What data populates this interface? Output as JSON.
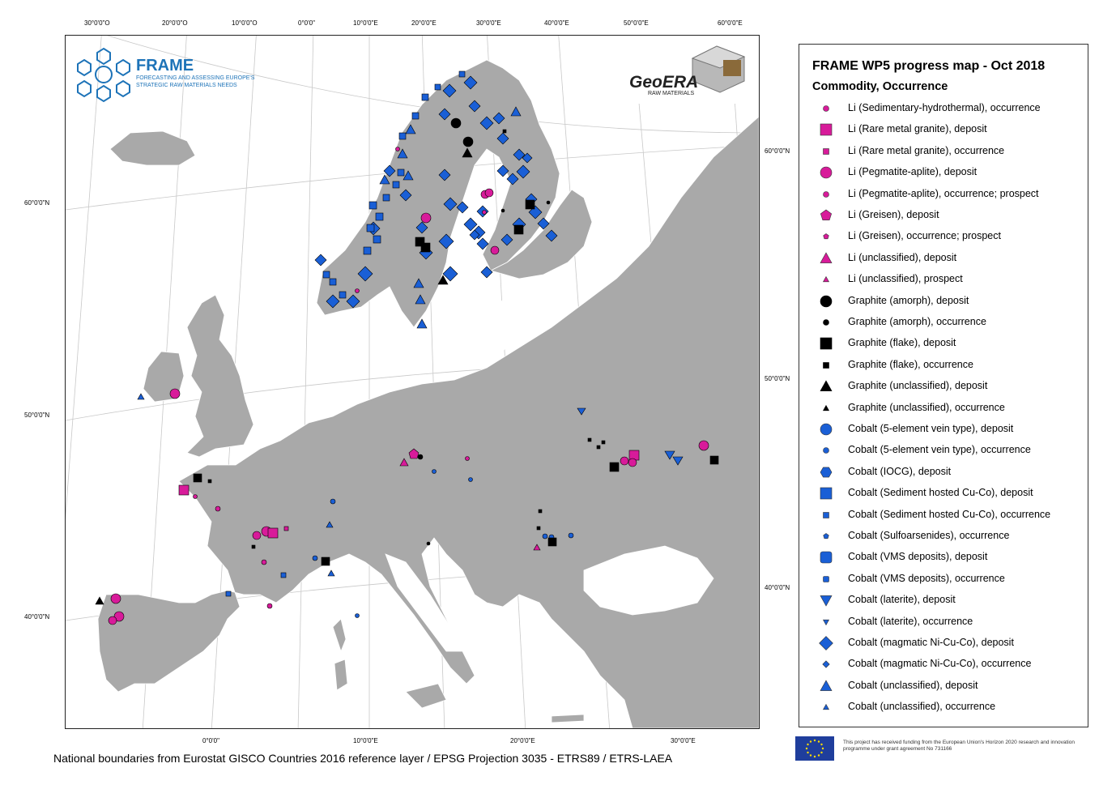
{
  "header": {
    "project_name": "FRAME",
    "project_tagline": "FORECASTING AND ASSESSING EUROPE'S STRATEGIC RAW MATERIALS NEEDS",
    "partner_name": "GeoERA",
    "partner_tagline": "RAW MATERIALS"
  },
  "legend": {
    "title": "FRAME WP5 progress map - Oct 2018",
    "subtitle": "Commodity, Occurrence",
    "items": [
      {
        "label": "Li (Sedimentary-hydrothermal), occurrence",
        "shape": "circle",
        "size": "small",
        "color": "#d81b9a"
      },
      {
        "label": "Li (Rare metal granite), deposit",
        "shape": "square",
        "size": "large",
        "color": "#d81b9a"
      },
      {
        "label": "Li (Rare metal granite), occurrence",
        "shape": "square",
        "size": "small",
        "color": "#d81b9a"
      },
      {
        "label": "Li (Pegmatite-aplite), deposit",
        "shape": "circle",
        "size": "large",
        "color": "#d81b9a"
      },
      {
        "label": "Li (Pegmatite-aplite), occurrence; prospect",
        "shape": "circle",
        "size": "small",
        "color": "#d81b9a"
      },
      {
        "label": "Li (Greisen), deposit",
        "shape": "pentagon",
        "size": "large",
        "color": "#d81b9a"
      },
      {
        "label": "Li (Greisen), occurrence; prospect",
        "shape": "pentagon",
        "size": "small",
        "color": "#d81b9a"
      },
      {
        "label": "Li (unclassified), deposit",
        "shape": "triangle",
        "size": "large",
        "color": "#d81b9a"
      },
      {
        "label": "Li (unclassified), prospect",
        "shape": "triangle",
        "size": "small",
        "color": "#d81b9a"
      },
      {
        "label": "Graphite (amorph), deposit",
        "shape": "circle",
        "size": "large",
        "color": "#000000"
      },
      {
        "label": "Graphite (amorph), occurrence",
        "shape": "circle",
        "size": "small",
        "color": "#000000"
      },
      {
        "label": "Graphite (flake), deposit",
        "shape": "square",
        "size": "large",
        "color": "#000000"
      },
      {
        "label": "Graphite (flake), occurrence",
        "shape": "square",
        "size": "small",
        "color": "#000000"
      },
      {
        "label": "Graphite (unclassified), deposit",
        "shape": "triangle",
        "size": "large",
        "color": "#000000"
      },
      {
        "label": "Graphite (unclassified), occurrence",
        "shape": "triangle",
        "size": "small",
        "color": "#000000"
      },
      {
        "label": "Cobalt (5-element vein type), deposit",
        "shape": "circle",
        "size": "large",
        "color": "#1a5fd6"
      },
      {
        "label": "Cobalt (5-element vein type), occurrence",
        "shape": "circle",
        "size": "small",
        "color": "#1a5fd6"
      },
      {
        "label": "Cobalt (IOCG), deposit",
        "shape": "hexagon",
        "size": "large",
        "color": "#1a5fd6"
      },
      {
        "label": "Cobalt (Sediment hosted Cu-Co), deposit",
        "shape": "square",
        "size": "large",
        "color": "#1a5fd6"
      },
      {
        "label": "Cobalt (Sediment hosted Cu-Co), occurrence",
        "shape": "square",
        "size": "small",
        "color": "#1a5fd6"
      },
      {
        "label": "Cobalt (Sulfoarsenides), occurrence",
        "shape": "pentagon",
        "size": "small",
        "color": "#1a5fd6"
      },
      {
        "label": "Cobalt (VMS deposits), deposit",
        "shape": "rounded",
        "size": "large",
        "color": "#1a5fd6"
      },
      {
        "label": "Cobalt (VMS deposits), occurrence",
        "shape": "rounded",
        "size": "small",
        "color": "#1a5fd6"
      },
      {
        "label": "Cobalt (laterite), deposit",
        "shape": "triangle-down",
        "size": "large",
        "color": "#1a5fd6"
      },
      {
        "label": "Cobalt (laterite), occurrence",
        "shape": "triangle-down",
        "size": "small",
        "color": "#1a5fd6"
      },
      {
        "label": "Cobalt (magmatic Ni-Cu-Co), deposit",
        "shape": "diamond",
        "size": "large",
        "color": "#1a5fd6"
      },
      {
        "label": "Cobalt (magmatic Ni-Cu-Co), occurrence",
        "shape": "diamond",
        "size": "small",
        "color": "#1a5fd6"
      },
      {
        "label": "Cobalt (unclassified), deposit",
        "shape": "triangle",
        "size": "large",
        "color": "#1a5fd6"
      },
      {
        "label": "Cobalt (unclassified), occurrence",
        "shape": "triangle",
        "size": "small",
        "color": "#1a5fd6"
      }
    ]
  },
  "axes": {
    "top_labels": [
      "30°0'0\"O",
      "20°0'0\"O",
      "10°0'0\"O",
      "0°0'0\"",
      "10°0'0\"E",
      "20°0'0\"E",
      "30°0'0\"E",
      "40°0'0\"E",
      "50°0'0\"E",
      "60°0'0\"E"
    ],
    "bottom_labels": [
      "0°0'0\"",
      "10°0'0\"E",
      "20°0'0\"E",
      "30°0'0\"E"
    ],
    "left_labels": [
      "60°0'0\"N",
      "50°0'0\"N",
      "40°0'0\"N"
    ],
    "right_labels": [
      "60°0'0\"N",
      "50°0'0\"N",
      "40°0'0\"N"
    ]
  },
  "footer": {
    "credit": "National boundaries from Eurostat GISCO Countries 2016 reference layer / EPSG Projection 3035 - ETRS89 / ETRS-LAEA",
    "eu_notice": "This project has received funding from the European Union's Horizon 2020 research and innovation programme under grant agreement No 731166"
  },
  "colors": {
    "land": "#a9a9a9",
    "lithium": "#d81b9a",
    "graphite": "#000000",
    "cobalt": "#1a5fd6",
    "frame_blue": "#1d73b8"
  }
}
